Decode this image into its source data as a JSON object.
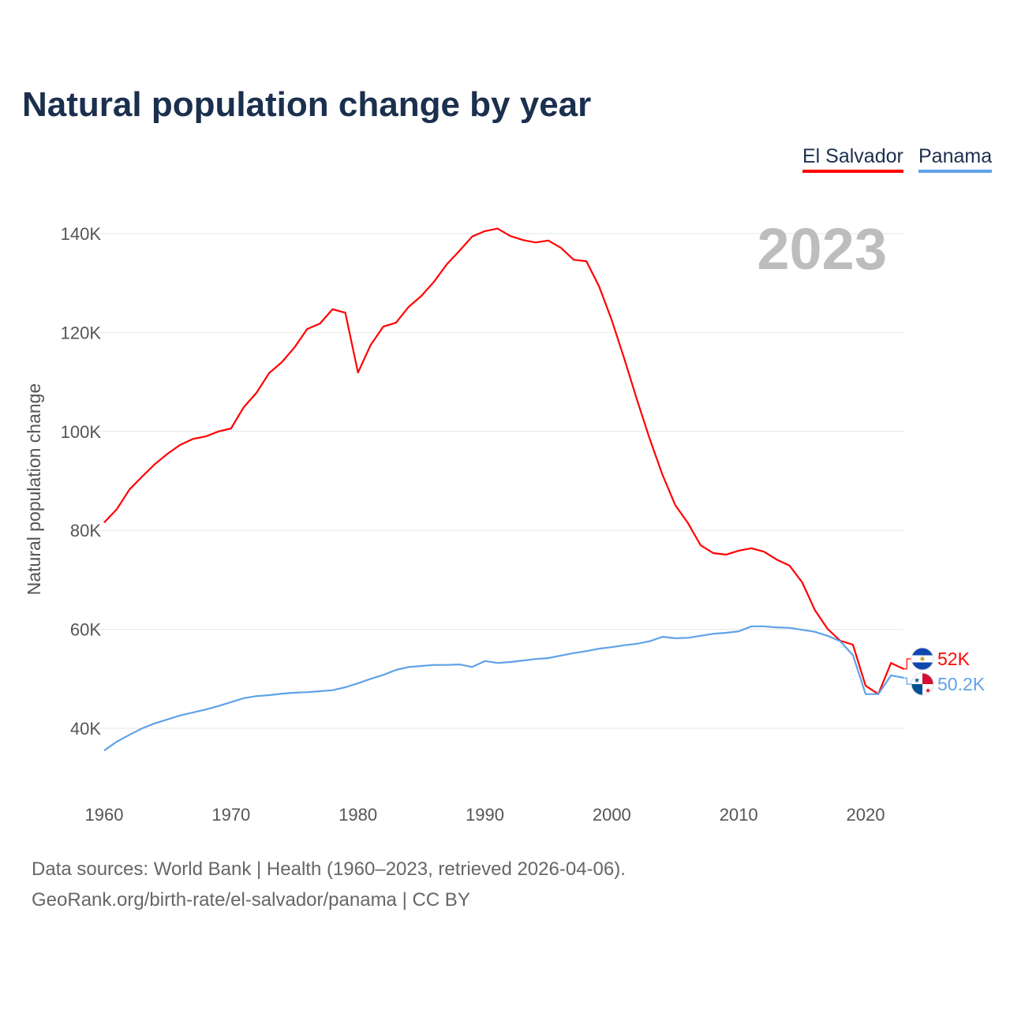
{
  "chart_data": {
    "type": "line",
    "title": "Natural population change by year",
    "ylabel": "Natural population change",
    "xlabel": "",
    "year_label": "2023",
    "xlim": [
      1960,
      2023
    ],
    "ylim": [
      30000,
      145000
    ],
    "x_ticks": [
      1960,
      1970,
      1980,
      1990,
      2000,
      2010,
      2020
    ],
    "x_tick_labels": [
      "1960",
      "1970",
      "1980",
      "1990",
      "2000",
      "2010",
      "2020"
    ],
    "y_ticks": [
      40000,
      60000,
      80000,
      100000,
      120000,
      140000
    ],
    "y_tick_labels": [
      "40K",
      "60K",
      "80K",
      "100K",
      "120K",
      "140K"
    ],
    "grid": true,
    "legend_placement": "top-right",
    "x": [
      1960,
      1961,
      1962,
      1963,
      1964,
      1965,
      1966,
      1967,
      1968,
      1969,
      1970,
      1971,
      1972,
      1973,
      1974,
      1975,
      1976,
      1977,
      1978,
      1979,
      1980,
      1981,
      1982,
      1983,
      1984,
      1985,
      1986,
      1987,
      1988,
      1989,
      1990,
      1991,
      1992,
      1993,
      1994,
      1995,
      1996,
      1997,
      1998,
      1999,
      2000,
      2001,
      2002,
      2003,
      2004,
      2005,
      2006,
      2007,
      2008,
      2009,
      2010,
      2011,
      2012,
      2013,
      2014,
      2015,
      2016,
      2017,
      2018,
      2019,
      2020,
      2021,
      2022,
      2023
    ],
    "series": [
      {
        "name": "El Salvador",
        "color": "#ff0000",
        "end_label": "52K",
        "flag": "el-salvador-flag",
        "values": [
          81600,
          84300,
          88300,
          90900,
          93400,
          95500,
          97300,
          98500,
          99000,
          100000,
          100600,
          104900,
          107800,
          111800,
          114000,
          117000,
          120700,
          121800,
          124700,
          124000,
          111900,
          117500,
          121200,
          122000,
          125200,
          127400,
          130300,
          133800,
          136500,
          139400,
          140500,
          141000,
          139500,
          138700,
          138200,
          138600,
          137100,
          134700,
          134400,
          129300,
          122500,
          114600,
          106300,
          98400,
          91200,
          85100,
          81500,
          77000,
          75400,
          75100,
          75900,
          76400,
          75700,
          74100,
          72900,
          69500,
          63900,
          60100,
          57700,
          56900,
          48600,
          46900,
          53200,
          52000
        ]
      },
      {
        "name": "Panama",
        "color": "#5fa2e8",
        "end_label": "50.2K",
        "flag": "panama-flag",
        "values": [
          35500,
          37300,
          38700,
          40000,
          41000,
          41800,
          42600,
          43200,
          43800,
          44500,
          45300,
          46100,
          46500,
          46700,
          47000,
          47200,
          47300,
          47500,
          47700,
          48300,
          49100,
          50000,
          50800,
          51800,
          52400,
          52600,
          52800,
          52800,
          52900,
          52400,
          53600,
          53200,
          53400,
          53700,
          54000,
          54200,
          54700,
          55200,
          55600,
          56100,
          56400,
          56800,
          57100,
          57600,
          58500,
          58200,
          58300,
          58700,
          59100,
          59300,
          59600,
          60600,
          60600,
          60400,
          60300,
          59900,
          59500,
          58700,
          57600,
          54800,
          46900,
          46900,
          50700,
          50200
        ]
      }
    ]
  },
  "footer": {
    "line1": "Data sources: World Bank | Health (1960–2023, retrieved 2026-04-06).",
    "line2": "GeoRank.org/birth-rate/el-salvador/panama | CC BY"
  }
}
